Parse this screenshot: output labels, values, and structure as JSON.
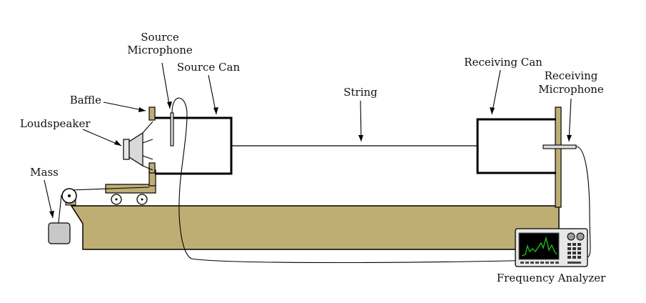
{
  "labels": {
    "source_microphone_line1": "Source",
    "source_microphone_line2": "Microphone",
    "source_can": "Source Can",
    "baffle": "Baffle",
    "loudspeaker": "Loudspeaker",
    "mass": "Mass",
    "string": "String",
    "receiving_can": "Receiving Can",
    "receiving_microphone_line1": "Receiving",
    "receiving_microphone_line2": "Microphone",
    "frequency_analyzer": "Frequency Analyzer"
  },
  "colors": {
    "base": "#bfae74",
    "line": "#000000",
    "screen": "#000000",
    "trace": "#22c022",
    "device": "#e8e8e8"
  }
}
